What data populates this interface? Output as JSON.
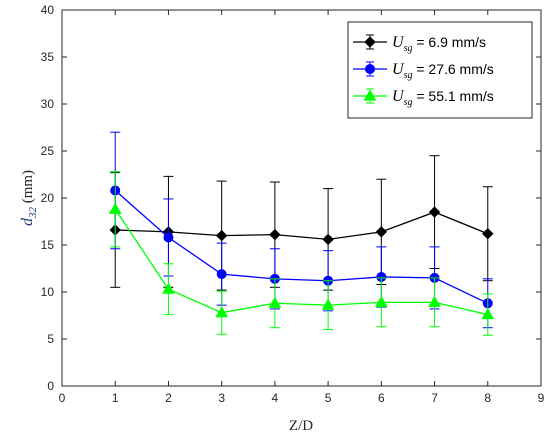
{
  "chart_data": {
    "type": "line",
    "xlabel": "Z/D",
    "ylabel_symbol": "d",
    "ylabel_subscript": "32",
    "ylabel_unit": "(mm)",
    "xlim": [
      0,
      9
    ],
    "ylim": [
      0,
      40
    ],
    "xticks": [
      0,
      1,
      2,
      3,
      4,
      5,
      6,
      7,
      8,
      9
    ],
    "yticks": [
      0,
      5,
      10,
      15,
      20,
      25,
      30,
      35,
      40
    ],
    "legend_position": "top-right",
    "x": [
      1,
      2,
      3,
      4,
      5,
      6,
      7,
      8
    ],
    "series": [
      {
        "name": "U_sg = 6.9 mm/s",
        "legend_symbol": "U",
        "legend_sub": "sg",
        "legend_value": " = 6.9 mm/s",
        "color": "#000000",
        "marker": "diamond",
        "values": [
          16.6,
          16.4,
          16.0,
          16.1,
          15.6,
          16.4,
          18.5,
          16.2
        ],
        "err": [
          6.1,
          5.9,
          5.8,
          5.6,
          5.4,
          5.6,
          6.0,
          5.0
        ]
      },
      {
        "name": "U_sg = 27.6 mm/s",
        "legend_symbol": "U",
        "legend_sub": "sg",
        "legend_value": " = 27.6 mm/s",
        "color": "#0000ff",
        "marker": "circle",
        "values": [
          20.8,
          15.8,
          11.9,
          11.4,
          11.2,
          11.6,
          11.5,
          8.8
        ],
        "err": [
          6.2,
          4.1,
          3.3,
          3.2,
          3.2,
          3.2,
          3.3,
          2.6
        ]
      },
      {
        "name": "U_sg = 55.1 mm/s",
        "legend_symbol": "U",
        "legend_sub": "sg",
        "legend_value": " = 55.1 mm/s",
        "color": "#00ff00",
        "marker": "triangle",
        "values": [
          18.8,
          10.3,
          7.8,
          8.8,
          8.6,
          8.9,
          8.9,
          7.6
        ],
        "err": [
          4.0,
          2.7,
          2.3,
          2.6,
          2.6,
          2.6,
          2.6,
          2.2
        ]
      }
    ]
  }
}
